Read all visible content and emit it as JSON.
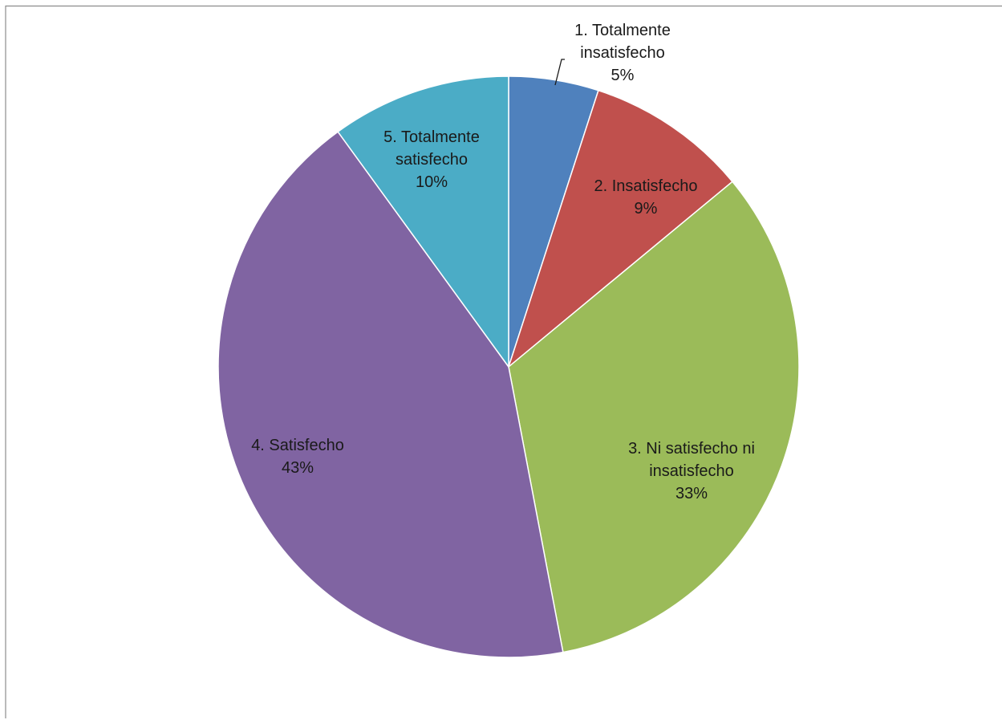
{
  "chart_data": {
    "type": "pie",
    "title": "",
    "slices": [
      {
        "label_lines": [
          "1. Totalmente",
          "insatisfecho"
        ],
        "value": 5,
        "percent_label": "5%",
        "color": "#4f81bd"
      },
      {
        "label_lines": [
          "2. Insatisfecho"
        ],
        "value": 9,
        "percent_label": "9%",
        "color": "#c0504d"
      },
      {
        "label_lines": [
          "3. Ni satisfecho ni",
          "insatisfecho"
        ],
        "value": 33,
        "percent_label": "33%",
        "color": "#9bbb59"
      },
      {
        "label_lines": [
          "4. Satisfecho"
        ],
        "value": 43,
        "percent_label": "43%",
        "color": "#8064a2"
      },
      {
        "label_lines": [
          "5. Totalmente",
          "satisfecho"
        ],
        "value": 10,
        "percent_label": "10%",
        "color": "#4bacc6"
      }
    ],
    "start_angle": "12 o'clock",
    "direction": "clockwise",
    "legend": "none"
  }
}
